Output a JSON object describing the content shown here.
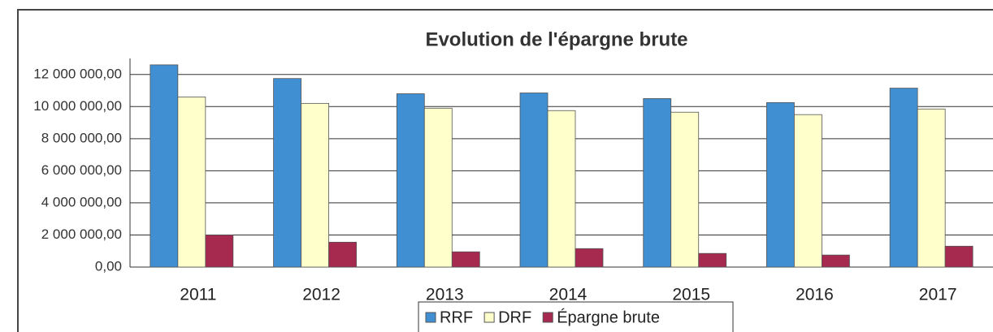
{
  "chart_data": {
    "type": "bar",
    "title": "Evolution de l'épargne brute",
    "categories": [
      "2011",
      "2012",
      "2013",
      "2014",
      "2015",
      "2016",
      "2017"
    ],
    "series": [
      {
        "name": "RRF",
        "color": "#3f8fd2",
        "values": [
          12600000,
          11750000,
          10800000,
          10850000,
          10500000,
          10250000,
          11150000
        ]
      },
      {
        "name": "DRF",
        "color": "#ffffcc",
        "values": [
          10600000,
          10200000,
          9900000,
          9750000,
          9650000,
          9500000,
          9850000
        ]
      },
      {
        "name": "Épargne brute",
        "color": "#a6294f",
        "values": [
          2000000,
          1550000,
          950000,
          1150000,
          850000,
          750000,
          1300000
        ]
      }
    ],
    "ylim": [
      0,
      13000000
    ],
    "yticks": [
      {
        "value": 0,
        "label": "0,00"
      },
      {
        "value": 2000000,
        "label": "2 000 000,00"
      },
      {
        "value": 4000000,
        "label": "4 000 000,00"
      },
      {
        "value": 6000000,
        "label": "6 000 000,00"
      },
      {
        "value": 8000000,
        "label": "8 000 000,00"
      },
      {
        "value": 10000000,
        "label": "10 000 000,00"
      },
      {
        "value": 12000000,
        "label": "12 000 000,00"
      }
    ],
    "grid": true,
    "legend": "bottom"
  }
}
